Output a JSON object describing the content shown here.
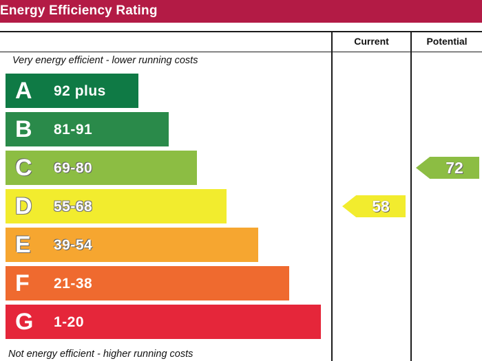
{
  "header": {
    "title": "Energy Efficiency Rating"
  },
  "columns": {
    "current": "Current",
    "potential": "Potential"
  },
  "captions": {
    "top": "Very energy efficient - lower running costs",
    "bottom": "Not energy efficient - higher running costs"
  },
  "chart_data": {
    "type": "bar",
    "title": "Energy Efficiency Rating",
    "categories": [
      "A",
      "B",
      "C",
      "D",
      "E",
      "F",
      "G"
    ],
    "ranges": [
      "92 plus",
      "81-91",
      "69-80",
      "55-68",
      "39-54",
      "21-38",
      "1-20"
    ],
    "band_colors": [
      "#0f7a45",
      "#2a8a4a",
      "#8cbd43",
      "#f2ec2e",
      "#f6a630",
      "#ef6a2f",
      "#e5263a"
    ],
    "current": {
      "value": 58,
      "label": "58",
      "band": "D",
      "color": "#f2ec2e"
    },
    "potential": {
      "value": 72,
      "label": "72",
      "band": "C",
      "color": "#8cbd43"
    }
  }
}
